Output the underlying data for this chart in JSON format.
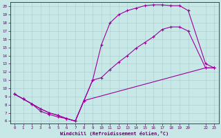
{
  "bg_color": "#c8e8e8",
  "line_color": "#990099",
  "grid_color": "#aacccc",
  "text_color": "#660066",
  "xlabel": "Windchill (Refroidissement éolien,°C)",
  "xlim": [
    -0.5,
    23.5
  ],
  "ylim": [
    5.7,
    20.5
  ],
  "yticks": [
    6,
    7,
    8,
    9,
    10,
    11,
    12,
    13,
    14,
    15,
    16,
    17,
    18,
    19,
    20
  ],
  "xticks": [
    0,
    1,
    2,
    3,
    4,
    5,
    6,
    7,
    8,
    9,
    10,
    11,
    12,
    13,
    14,
    15,
    16,
    17,
    18,
    19,
    20,
    22,
    23
  ],
  "curve1_x": [
    0,
    1,
    2,
    3,
    4,
    5,
    6,
    7,
    8,
    9,
    10,
    11,
    12,
    13,
    14,
    15,
    16,
    17,
    18,
    19,
    20,
    22,
    23
  ],
  "curve1_y": [
    9.3,
    8.7,
    8.1,
    7.5,
    7.0,
    6.7,
    6.3,
    6.0,
    8.5,
    11.0,
    15.3,
    18.0,
    19.0,
    19.5,
    19.8,
    20.1,
    20.2,
    20.2,
    20.1,
    20.1,
    19.5,
    13.0,
    12.5
  ],
  "curve2_x": [
    0,
    1,
    2,
    3,
    4,
    5,
    6,
    7,
    8,
    9,
    10,
    11,
    12,
    13,
    14,
    15,
    16,
    17,
    18,
    19,
    20,
    22,
    23
  ],
  "curve2_y": [
    9.3,
    8.7,
    8.1,
    7.5,
    7.0,
    6.7,
    6.3,
    6.0,
    8.5,
    11.0,
    11.3,
    12.3,
    13.2,
    14.0,
    14.9,
    15.6,
    16.3,
    17.2,
    17.5,
    17.5,
    17.0,
    12.5,
    12.5
  ],
  "curve3_x": [
    0,
    1,
    2,
    3,
    4,
    5,
    6,
    7,
    8,
    22,
    23
  ],
  "curve3_y": [
    9.3,
    8.7,
    8.1,
    7.2,
    6.8,
    6.5,
    6.3,
    6.0,
    8.5,
    12.5,
    12.5
  ]
}
